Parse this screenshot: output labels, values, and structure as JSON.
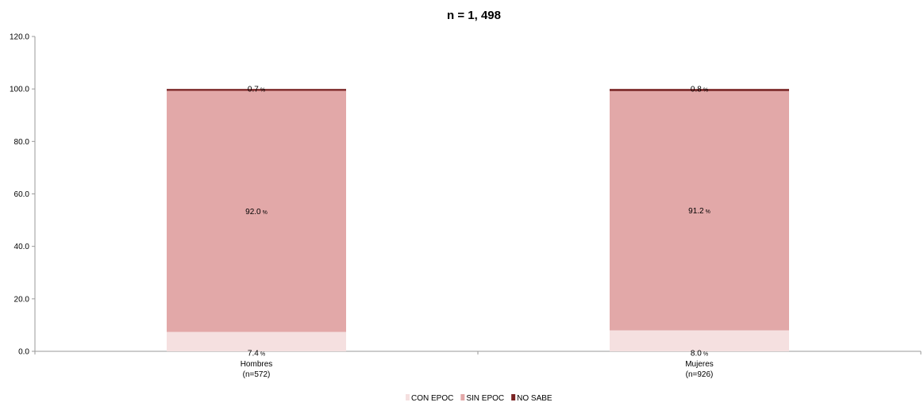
{
  "chart_data": {
    "type": "bar",
    "stacked": true,
    "title": "n = 1, 498",
    "xlabel": "",
    "ylabel": "",
    "ylim": [
      0,
      120
    ],
    "yticks": [
      "0.0",
      "20.0",
      "40.0",
      "60.0",
      "80.0",
      "100.0",
      "120.0"
    ],
    "grid": false,
    "legend_position": "bottom",
    "categories": [
      {
        "line1": "Hombres",
        "line2": "(n=572)"
      },
      {
        "line1": "Mujeres",
        "line2": "(n=926)"
      }
    ],
    "series": [
      {
        "name": "CON EPOC",
        "color": "#f5e0e0",
        "values": [
          7.4,
          8.0
        ],
        "labels": [
          "7.4",
          "8.0"
        ]
      },
      {
        "name": "SIN EPOC",
        "color": "#e2a8a8",
        "values": [
          92.0,
          91.2
        ],
        "labels": [
          "92.0",
          "91.2"
        ]
      },
      {
        "name": "NO SABE",
        "color": "#7a2424",
        "values": [
          0.7,
          0.8
        ],
        "labels": [
          "0.7",
          "0.8"
        ]
      }
    ],
    "value_unit": "%"
  }
}
